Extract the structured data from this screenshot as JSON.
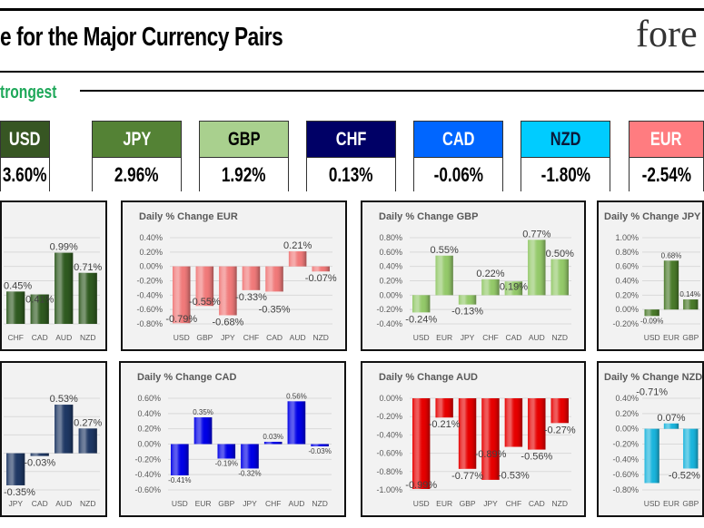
{
  "header": {
    "title": "e for the Major Currency Pairs",
    "logo_text": "fore",
    "subheading": "trongest"
  },
  "currencies": [
    {
      "code": "USD",
      "change": "3.60%",
      "bg": "#375623",
      "fg": "#ffffff"
    },
    {
      "code": "JPY",
      "change": "2.96%",
      "bg": "#548235",
      "fg": "#ffffff"
    },
    {
      "code": "GBP",
      "change": "1.92%",
      "bg": "#a9d08e",
      "fg": "#000000"
    },
    {
      "code": "CHF",
      "change": "0.13%",
      "bg": "#000066",
      "fg": "#ffffff"
    },
    {
      "code": "CAD",
      "change": "-0.06%",
      "bg": "#0066ff",
      "fg": "#ffffff"
    },
    {
      "code": "NZD",
      "change": "-1.80%",
      "bg": "#00ccff",
      "fg": "#0a1a3a"
    },
    {
      "code": "EUR",
      "change": "-2.54%",
      "bg": "#ff7c80",
      "fg": "#ffffff"
    }
  ],
  "chart_data": [
    {
      "id": "usd",
      "type": "bar",
      "title": "",
      "categories": [
        "CHF",
        "CAD",
        "AUD",
        "NZD"
      ],
      "values": [
        0.45,
        0.41,
        0.99,
        0.71
      ],
      "ylim": [
        0,
        1.2
      ],
      "step": 0.2,
      "color": "#2f5a20",
      "label_size": 11
    },
    {
      "id": "eur",
      "type": "bar",
      "title": "Daily % Change EUR",
      "categories": [
        "USD",
        "GBP",
        "JPY",
        "CHF",
        "CAD",
        "AUD",
        "NZD"
      ],
      "values": [
        -0.79,
        -0.55,
        -0.68,
        -0.33,
        -0.35,
        0.21,
        -0.07
      ],
      "ylim": [
        -0.8,
        0.4
      ],
      "step": 0.2,
      "color": "#f07a7a",
      "label_size": 11
    },
    {
      "id": "gbp",
      "type": "bar",
      "title": "Daily % Change GBP",
      "categories": [
        "USD",
        "EUR",
        "JPY",
        "CHF",
        "CAD",
        "AUD",
        "NZD"
      ],
      "values": [
        -0.24,
        0.55,
        -0.13,
        0.22,
        0.19,
        0.77,
        0.5
      ],
      "ylim": [
        -0.4,
        0.8
      ],
      "step": 0.2,
      "color": "#94c96a",
      "label_size": 11
    },
    {
      "id": "jpy",
      "type": "bar",
      "title": "Daily % Change JPY",
      "categories": [
        "USD",
        "EUR",
        "GBP"
      ],
      "values": [
        -0.09,
        0.68,
        0.14
      ],
      "ylim": [
        -0.2,
        1.0
      ],
      "step": 0.2,
      "color": "#4a7a2a",
      "label_size": 8
    },
    {
      "id": "chf",
      "type": "bar",
      "title": "",
      "categories": [
        "JPY",
        "CAD",
        "AUD",
        "NZD"
      ],
      "values": [
        -0.35,
        -0.03,
        0.53,
        0.27
      ],
      "ylim": [
        -0.4,
        0.6
      ],
      "step": 0.2,
      "color": "#1f3864",
      "label_size": 11
    },
    {
      "id": "cad",
      "type": "bar",
      "title": "Daily % Change CAD",
      "categories": [
        "USD",
        "EUR",
        "GBP",
        "JPY",
        "CHF",
        "AUD",
        "NZD"
      ],
      "values": [
        -0.41,
        0.35,
        -0.19,
        -0.32,
        0.03,
        0.56,
        -0.03
      ],
      "ylim": [
        -0.6,
        0.6
      ],
      "step": 0.2,
      "color": "#0000e6",
      "label_size": 8
    },
    {
      "id": "aud",
      "type": "bar",
      "title": "Daily % Change AUD",
      "categories": [
        "USD",
        "EUR",
        "GBP",
        "JPY",
        "CHF",
        "CAD",
        "NZD"
      ],
      "values": [
        -0.99,
        -0.21,
        -0.77,
        -0.89,
        -0.53,
        -0.56,
        -0.27
      ],
      "ylim": [
        -1.0,
        0
      ],
      "step": 0.2,
      "color": "#e60000",
      "label_size": 11
    },
    {
      "id": "nzd",
      "type": "bar",
      "title": "Daily % Change NZD",
      "categories": [
        "USD",
        "EUR",
        "GBP"
      ],
      "values": [
        -0.71,
        0.07,
        -0.52
      ],
      "ylim": [
        -0.8,
        0.4
      ],
      "step": 0.2,
      "color": "#1ab4dc",
      "label_size": 11
    }
  ]
}
